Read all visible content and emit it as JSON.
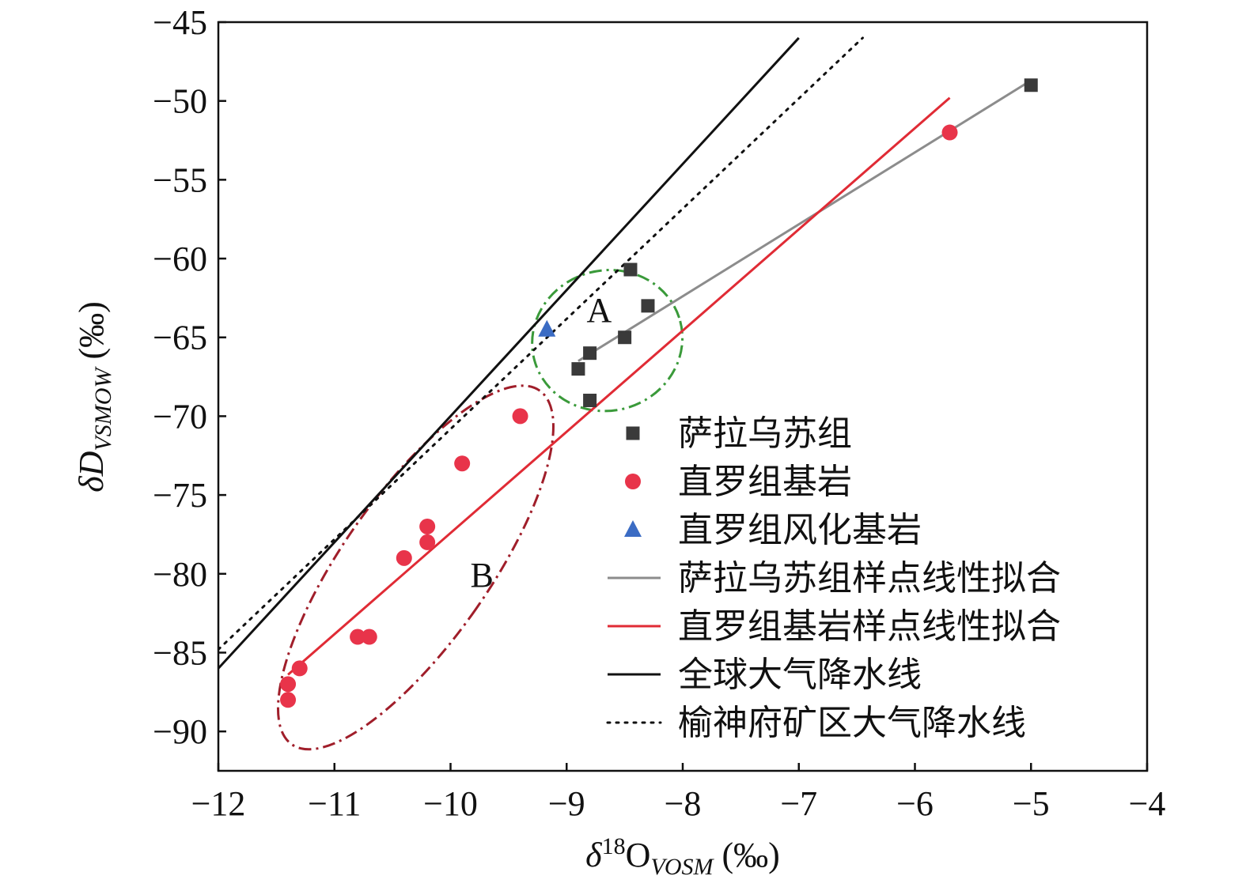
{
  "chart_data": {
    "type": "scatter",
    "x_axis": {
      "label_parts": {
        "prefix": "δ",
        "sup": "18",
        "main": "O",
        "sub": "VOSM",
        "suffix": " (‰)"
      },
      "range": [
        -12,
        -4
      ],
      "ticks": [
        -12,
        -11,
        -10,
        -9,
        -8,
        -7,
        -6,
        -5,
        -4
      ],
      "tick_labels": [
        "−12",
        "−11",
        "−10",
        "−9",
        "−8",
        "−7",
        "−6",
        "−5",
        "−4"
      ]
    },
    "y_axis": {
      "label_parts": {
        "prefix": "δD",
        "sub": "VSMOW",
        "suffix": " (‰)"
      },
      "range": [
        -92.5,
        -45
      ],
      "ticks": [
        -45,
        -50,
        -55,
        -60,
        -65,
        -70,
        -75,
        -80,
        -85,
        -90
      ],
      "tick_labels": [
        "−45",
        "−50",
        "−55",
        "−60",
        "−65",
        "−70",
        "−75",
        "−80",
        "−85",
        "−90"
      ]
    },
    "series": [
      {
        "name": "萨拉乌苏组",
        "kind": "points",
        "marker": "square",
        "color": "#3a3a3a",
        "points": [
          [
            -8.45,
            -60.7
          ],
          [
            -8.3,
            -63.0
          ],
          [
            -8.5,
            -65.0
          ],
          [
            -8.8,
            -66.0
          ],
          [
            -8.9,
            -67.0
          ],
          [
            -8.8,
            -69.0
          ],
          [
            -5.0,
            -49.0
          ]
        ]
      },
      {
        "name": "直罗组基岩",
        "kind": "points",
        "marker": "circle",
        "color": "#e8344a",
        "points": [
          [
            -9.4,
            -70.0
          ],
          [
            -9.9,
            -73.0
          ],
          [
            -10.2,
            -77.0
          ],
          [
            -10.2,
            -78.0
          ],
          [
            -10.4,
            -79.0
          ],
          [
            -10.8,
            -84.0
          ],
          [
            -10.7,
            -84.0
          ],
          [
            -11.3,
            -86.0
          ],
          [
            -11.4,
            -87.0
          ],
          [
            -11.4,
            -88.0
          ],
          [
            -5.7,
            -52.0
          ]
        ]
      },
      {
        "name": "直罗组风化基岩",
        "kind": "points",
        "marker": "triangle",
        "color": "#3b6cc4",
        "points": [
          [
            -9.17,
            -64.5
          ]
        ]
      },
      {
        "name": "萨拉乌苏组样点线性拟合",
        "kind": "line",
        "style": "solid",
        "color": "#8c8c8c",
        "points": [
          [
            -8.9,
            -66.5
          ],
          [
            -5.0,
            -48.7
          ]
        ]
      },
      {
        "name": "直罗组基岩样点线性拟合",
        "kind": "line",
        "style": "solid",
        "color": "#e02b35",
        "points": [
          [
            -11.4,
            -86.4
          ],
          [
            -5.7,
            -49.8
          ]
        ]
      },
      {
        "name": "全球大气降水线",
        "kind": "line",
        "style": "solid",
        "color": "#111111",
        "points": [
          [
            -12.0,
            -86.0
          ],
          [
            -7.0,
            -46.0
          ]
        ]
      },
      {
        "name": "榆神府矿区大气降水线",
        "kind": "line",
        "style": "dotted",
        "color": "#111111",
        "points": [
          [
            -12.0,
            -84.8
          ],
          [
            -6.45,
            -46.0
          ]
        ]
      }
    ],
    "regions": [
      {
        "label": "A",
        "color": "#3a9a3a",
        "center": [
          -8.65,
          -65.2
        ],
        "rx_data": 0.65,
        "ry_data": 4.45,
        "rotate": -15,
        "label_at": [
          -8.72,
          -63.2
        ]
      },
      {
        "label": "B",
        "color": "#a01e2a",
        "center": [
          -10.3,
          -79.6
        ],
        "rx_data": 0.63,
        "ry_data": 13.7,
        "rotate": 35,
        "label_at": [
          -9.73,
          -80.0
        ]
      }
    ],
    "legend": {
      "placement": "bottom-right",
      "entries": [
        "萨拉乌苏组",
        "直罗组基岩",
        "直罗组风化基岩",
        "萨拉乌苏组样点线性拟合",
        "直罗组基岩样点线性拟合",
        "全球大气降水线",
        "榆神府矿区大气降水线"
      ]
    },
    "grid": false
  }
}
